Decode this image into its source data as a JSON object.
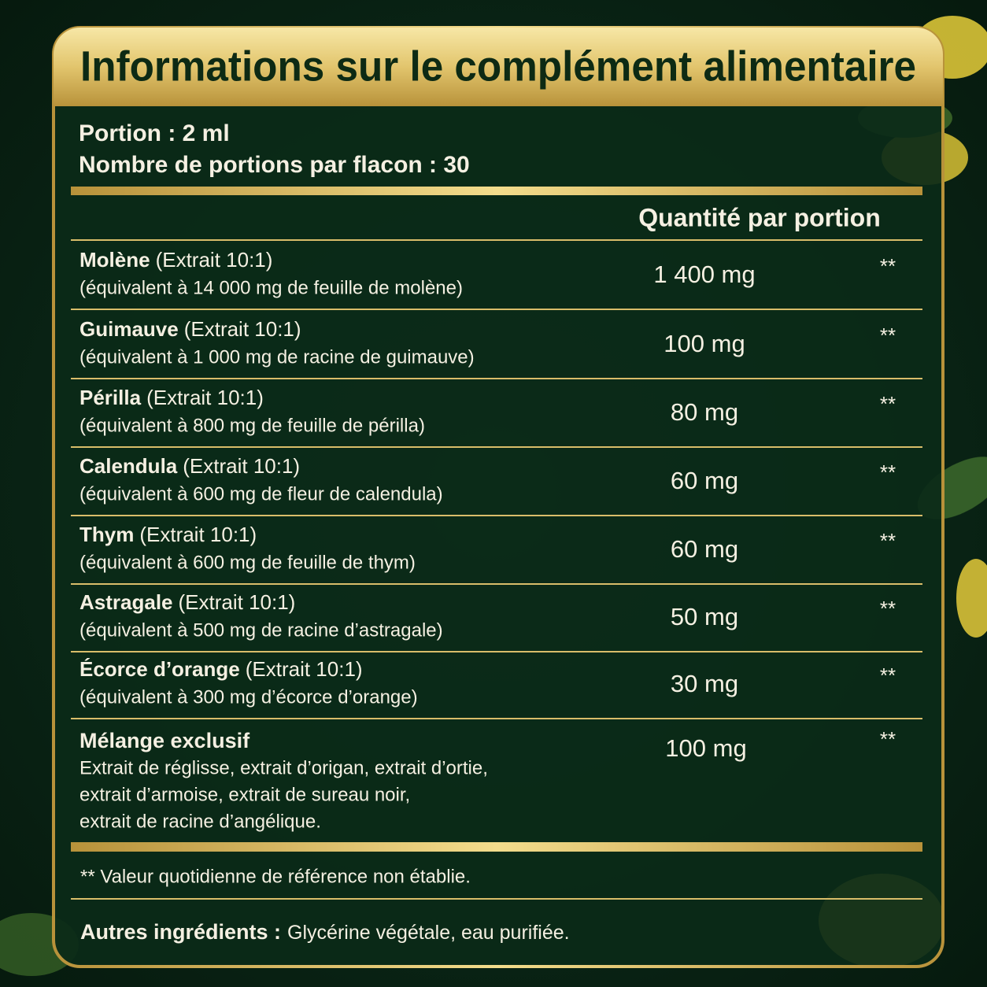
{
  "title": "Informations sur le complément alimentaire",
  "serving": {
    "size": "Portion : 2 ml",
    "count": "Nombre de portions par flacon : 30"
  },
  "table": {
    "header": "Quantité par portion",
    "rows": [
      {
        "name": "Molène",
        "extract": "(Extrait 10:1)",
        "equivalent": "(équivalent à 14 000 mg de feuille de molène)",
        "amount": "1 400 mg",
        "dv": "**"
      },
      {
        "name": "Guimauve",
        "extract": "(Extrait 10:1)",
        "equivalent": "(équivalent à 1 000 mg de racine de guimauve)",
        "amount": "100 mg",
        "dv": "**"
      },
      {
        "name": "Périlla",
        "extract": "(Extrait 10:1)",
        "equivalent": "(équivalent à 800 mg de feuille de périlla)",
        "amount": "80 mg",
        "dv": "**"
      },
      {
        "name": "Calendula",
        "extract": "(Extrait 10:1)",
        "equivalent": "(équivalent à 600 mg de fleur de calendula)",
        "amount": "60 mg",
        "dv": "**"
      },
      {
        "name": "Thym",
        "extract": "(Extrait 10:1)",
        "equivalent": "(équivalent à 600 mg de feuille de thym)",
        "amount": "60 mg",
        "dv": "**"
      },
      {
        "name": "Astragale",
        "extract": "(Extrait 10:1)",
        "equivalent": "(équivalent à 500 mg de racine d’astragale)",
        "amount": "50 mg",
        "dv": "**"
      },
      {
        "name": "Écorce d’orange",
        "extract": "(Extrait 10:1)",
        "equivalent": "(équivalent à 300 mg d’écorce d’orange)",
        "amount": "30 mg",
        "dv": "**"
      }
    ],
    "blend": {
      "name": "Mélange exclusif",
      "amount": "100 mg",
      "dv": "**",
      "description": [
        "Extrait de réglisse, extrait d’origan, extrait d’ortie,",
        "extrait d’armoise, extrait de sureau noir,",
        "extrait de racine d’angélique."
      ]
    }
  },
  "footnote": "** Valeur quotidienne de référence non établie.",
  "other_ingredients": {
    "label": "Autres ingrédients :",
    "text": "Glycérine végétale, eau purifiée."
  }
}
